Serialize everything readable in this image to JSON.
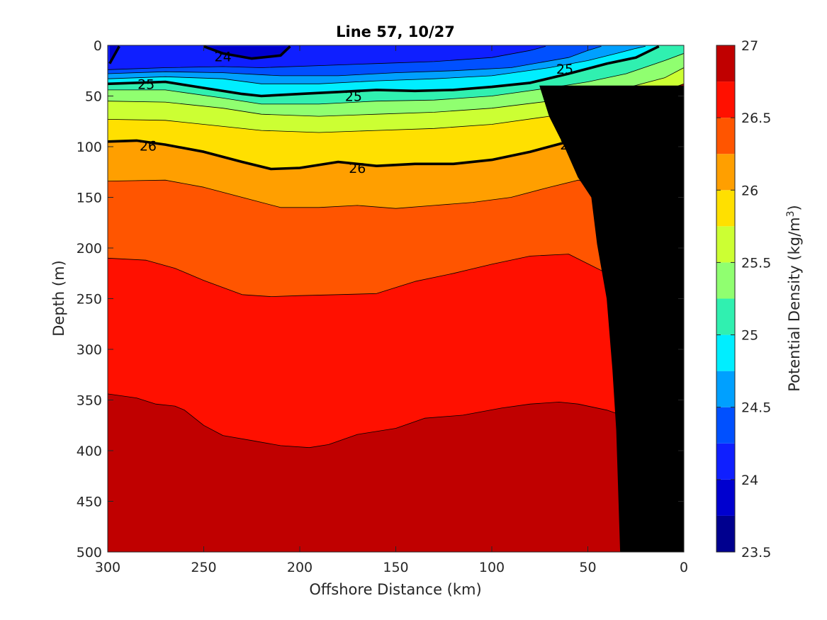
{
  "chart_data": {
    "type": "filled-contour",
    "title": "Line 57, 10/27",
    "xlabel": "Offshore Distance (km)",
    "ylabel": "Depth (m)",
    "xlim": [
      300,
      0
    ],
    "ylim": [
      0,
      500
    ],
    "x_reversed": true,
    "y_reversed": true,
    "xticks": [
      300,
      250,
      200,
      150,
      100,
      50,
      0
    ],
    "yticks": [
      0,
      50,
      100,
      150,
      200,
      250,
      300,
      350,
      400,
      450,
      500
    ],
    "colorbar": {
      "label": "Potential Density (kg/m³)",
      "label_text": "Potential Density (kg/m",
      "label_sup": "3",
      "label_end": ")",
      "range": [
        23.5,
        27
      ],
      "ticks": [
        "23.5",
        "24",
        "24.5",
        "25",
        "25.5",
        "26",
        "26.5",
        "27"
      ],
      "levels": [
        {
          "min": 23.5,
          "max": 23.75,
          "color": "#00008f"
        },
        {
          "min": 23.75,
          "max": 24.0,
          "color": "#0000cf"
        },
        {
          "min": 24.0,
          "max": 24.25,
          "color": "#0f1fff"
        },
        {
          "min": 24.25,
          "max": 24.5,
          "color": "#0050ff"
        },
        {
          "min": 24.5,
          "max": 24.75,
          "color": "#00a0ff"
        },
        {
          "min": 24.75,
          "max": 25.0,
          "color": "#00eeff"
        },
        {
          "min": 25.0,
          "max": 25.25,
          "color": "#30f0b0"
        },
        {
          "min": 25.25,
          "max": 25.5,
          "color": "#90ff70"
        },
        {
          "min": 25.5,
          "max": 25.75,
          "color": "#ccff33"
        },
        {
          "min": 25.75,
          "max": 26.0,
          "color": "#ffe000"
        },
        {
          "min": 26.0,
          "max": 26.25,
          "color": "#ff9f00"
        },
        {
          "min": 26.25,
          "max": 26.5,
          "color": "#ff5500"
        },
        {
          "min": 26.5,
          "max": 26.75,
          "color": "#ff1000"
        },
        {
          "min": 26.75,
          "max": 27.0,
          "color": "#c00000"
        }
      ]
    },
    "contour_lines": [
      {
        "level": 24.0,
        "bold": true,
        "x": [
          299,
          294
        ],
        "depth": [
          18,
          1
        ]
      },
      {
        "level": 24.0,
        "bold": true,
        "x": [
          250,
          240,
          225,
          210,
          205
        ],
        "depth": [
          1,
          8,
          13,
          10,
          1
        ]
      },
      {
        "level": 24.25,
        "bold": false,
        "x": [
          300,
          270,
          240,
          220,
          190,
          160,
          130,
          100,
          80,
          72
        ],
        "depth": [
          24,
          22,
          21,
          22,
          20,
          18,
          16,
          12,
          5,
          1
        ]
      },
      {
        "level": 24.5,
        "bold": false,
        "x": [
          300,
          270,
          240,
          210,
          180,
          150,
          120,
          90,
          60,
          50,
          43
        ],
        "depth": [
          28,
          26,
          27,
          30,
          30,
          27,
          25,
          22,
          12,
          5,
          1
        ]
      },
      {
        "level": 24.75,
        "bold": false,
        "x": [
          300,
          270,
          240,
          220,
          190,
          160,
          130,
          100,
          70,
          50,
          35,
          25,
          20
        ],
        "depth": [
          33,
          31,
          33,
          38,
          38,
          35,
          33,
          30,
          22,
          15,
          8,
          3,
          1
        ]
      },
      {
        "level": 25.0,
        "bold": true,
        "x": [
          300,
          270,
          250,
          230,
          220,
          200,
          180,
          160,
          140,
          120,
          100,
          80,
          60,
          40,
          25,
          13
        ],
        "depth": [
          38,
          36,
          42,
          48,
          50,
          48,
          46,
          44,
          45,
          44,
          41,
          37,
          28,
          18,
          12,
          1
        ]
      },
      {
        "level": 25.25,
        "bold": false,
        "x": [
          300,
          270,
          240,
          220,
          190,
          160,
          130,
          100,
          70,
          50,
          30,
          10,
          0
        ],
        "depth": [
          44,
          44,
          52,
          58,
          58,
          55,
          54,
          50,
          42,
          36,
          28,
          15,
          8
        ]
      },
      {
        "level": 25.5,
        "bold": false,
        "x": [
          300,
          270,
          240,
          220,
          190,
          160,
          130,
          100,
          70,
          50,
          30,
          10,
          0
        ],
        "depth": [
          55,
          56,
          62,
          68,
          70,
          68,
          66,
          62,
          55,
          48,
          42,
          32,
          22
        ]
      },
      {
        "level": 25.75,
        "bold": false,
        "x": [
          300,
          270,
          240,
          220,
          190,
          160,
          130,
          100,
          70,
          50,
          30,
          10,
          0
        ],
        "depth": [
          73,
          74,
          80,
          84,
          86,
          84,
          82,
          78,
          70,
          62,
          55,
          45,
          38
        ]
      },
      {
        "level": 26.0,
        "bold": true,
        "x": [
          300,
          285,
          270,
          250,
          230,
          215,
          200,
          180,
          160,
          140,
          120,
          100,
          80,
          60,
          45,
          30,
          15,
          5
        ],
        "depth": [
          95,
          94,
          98,
          105,
          115,
          122,
          121,
          115,
          119,
          117,
          117,
          113,
          105,
          95,
          88,
          85,
          80,
          79
        ]
      },
      {
        "level": 26.25,
        "bold": false,
        "x": [
          300,
          270,
          250,
          230,
          210,
          190,
          170,
          150,
          130,
          110,
          90,
          70,
          55,
          40,
          28,
          20
        ],
        "depth": [
          134,
          133,
          140,
          150,
          160,
          160,
          158,
          161,
          158,
          155,
          150,
          140,
          133,
          140,
          145,
          148
        ]
      },
      {
        "level": 26.5,
        "bold": false,
        "x": [
          300,
          280,
          265,
          250,
          230,
          215,
          200,
          180,
          160,
          140,
          120,
          100,
          80,
          60,
          40,
          27
        ],
        "depth": [
          210,
          212,
          220,
          232,
          246,
          248,
          247,
          246,
          245,
          233,
          225,
          216,
          208,
          206,
          225,
          236
        ]
      },
      {
        "level": 26.75,
        "bold": false,
        "x": [
          300,
          285,
          275,
          265,
          260,
          250,
          240,
          225,
          210,
          195,
          185,
          170,
          150,
          135,
          115,
          95,
          80,
          65,
          55,
          40,
          31
        ],
        "depth": [
          344,
          348,
          354,
          356,
          360,
          375,
          385,
          390,
          395,
          397,
          394,
          384,
          378,
          368,
          365,
          358,
          354,
          352,
          354,
          360,
          366
        ]
      }
    ],
    "bathymetry": {
      "fill": "#000000",
      "x": [
        33,
        35,
        37,
        40,
        45,
        48,
        55,
        62,
        70,
        75
      ],
      "depth": [
        500,
        380,
        320,
        250,
        196,
        150,
        130,
        100,
        70,
        40
      ]
    },
    "contour_labels": [
      {
        "text": "24",
        "x": 240,
        "depth": 11
      },
      {
        "text": "25",
        "x": 280,
        "depth": 38
      },
      {
        "text": "25",
        "x": 172,
        "depth": 50
      },
      {
        "text": "25",
        "x": 62,
        "depth": 23
      },
      {
        "text": "26",
        "x": 279,
        "depth": 99
      },
      {
        "text": "26",
        "x": 170,
        "depth": 121
      },
      {
        "text": "26",
        "x": 60,
        "depth": 98
      }
    ]
  }
}
